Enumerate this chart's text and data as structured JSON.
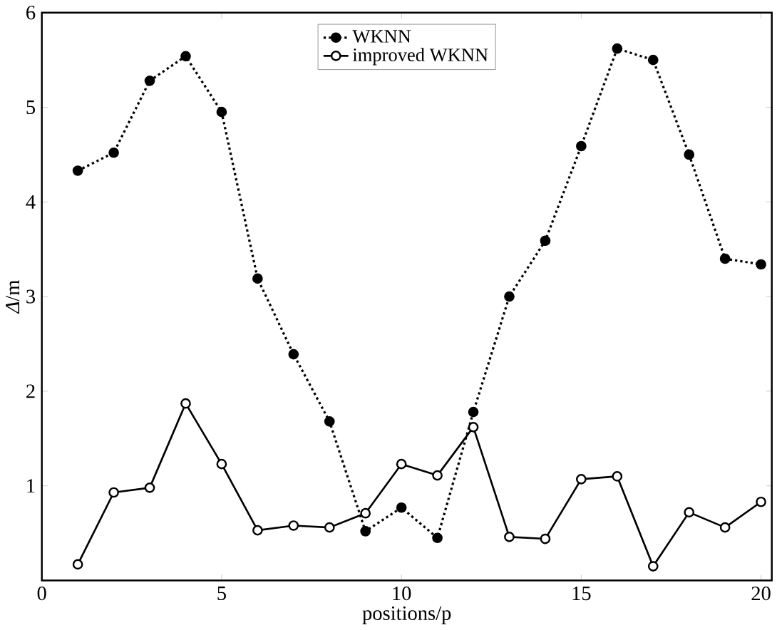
{
  "chart_data": {
    "type": "line",
    "xlabel": "positions/p",
    "ylabel": "*Δ*/m",
    "x": [
      1,
      2,
      3,
      4,
      5,
      6,
      7,
      8,
      9,
      10,
      11,
      12,
      13,
      14,
      15,
      16,
      17,
      18,
      19,
      20
    ],
    "series": [
      {
        "name": "WKNN",
        "color": "#000000",
        "marker": "circle",
        "line_style": "dotted",
        "values": [
          4.33,
          4.52,
          5.28,
          5.54,
          4.95,
          3.19,
          2.39,
          1.68,
          0.52,
          0.77,
          0.45,
          1.78,
          3.0,
          3.59,
          4.59,
          5.62,
          5.5,
          4.5,
          3.4,
          3.34
        ]
      },
      {
        "name": "improved WKNN",
        "color": "#000000",
        "marker": "circle",
        "line_style": "solid",
        "values": [
          0.17,
          0.93,
          0.98,
          1.87,
          1.23,
          0.53,
          0.58,
          0.56,
          0.71,
          1.23,
          1.11,
          1.62,
          0.46,
          0.44,
          1.07,
          1.1,
          0.15,
          0.72,
          0.56,
          0.83
        ]
      }
    ],
    "xlim": [
      0,
      20.3
    ],
    "ylim": [
      0,
      6
    ],
    "xticks": [
      0,
      5,
      10,
      15,
      20
    ],
    "yticks": [
      1,
      2,
      3,
      4,
      5,
      6
    ],
    "legend": "top",
    "grid": false
  }
}
